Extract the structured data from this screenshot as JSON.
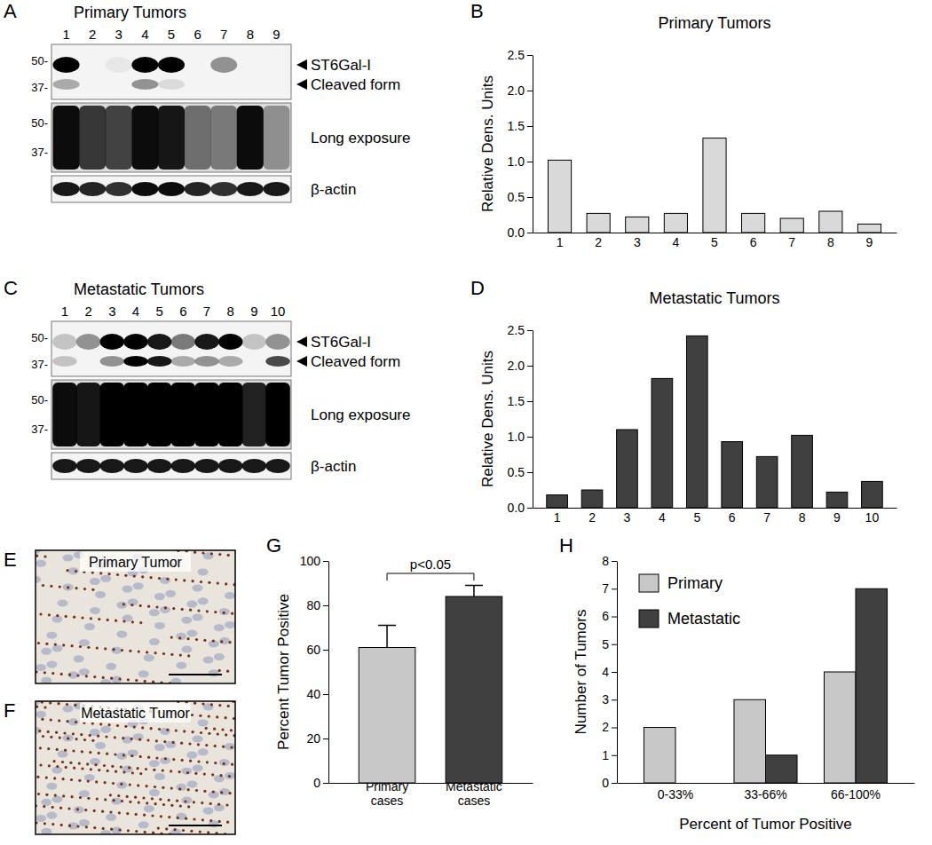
{
  "chart_data": [
    {
      "type": "bar",
      "panel_label": "B",
      "title": "Primary Tumors",
      "y_label": "Relative Dens. Units",
      "categories": [
        "1",
        "2",
        "3",
        "4",
        "5",
        "6",
        "7",
        "8",
        "9"
      ],
      "values": [
        1.02,
        0.27,
        0.22,
        0.27,
        1.33,
        0.27,
        0.2,
        0.3,
        0.12
      ],
      "color": "#d9d9d9",
      "ylim": [
        0,
        2.5
      ],
      "yticks": [
        {
          "value": 0,
          "label": "0.0"
        },
        0.5,
        {
          "value": 1,
          "label": "1.0"
        },
        1.5,
        {
          "value": 2,
          "label": "2.0"
        },
        2.5
      ]
    },
    {
      "type": "bar",
      "panel_label": "D",
      "title": "Metastatic Tumors",
      "y_label": "Relative Dens. Units",
      "categories": [
        "1",
        "2",
        "3",
        "4",
        "5",
        "6",
        "7",
        "8",
        "9",
        "10"
      ],
      "values": [
        0.18,
        0.25,
        1.1,
        1.82,
        2.42,
        0.93,
        0.72,
        1.02,
        0.22,
        0.37
      ],
      "color": "#404040",
      "ylim": [
        0,
        2.5
      ],
      "yticks": [
        {
          "value": 0,
          "label": "0.0"
        },
        0.5,
        {
          "value": 1,
          "label": "1.0"
        },
        1.5,
        {
          "value": 2,
          "label": "2.0"
        },
        2.5
      ]
    },
    {
      "type": "bar",
      "panel_label": "G",
      "y_label": "Percent Tumor Positive",
      "categories": [
        "Primary cases",
        "Metastatic cases"
      ],
      "values": [
        61,
        84
      ],
      "errors": [
        10,
        5
      ],
      "colors": [
        "#c8c8c8",
        "#404040"
      ],
      "annotation": "p<0.05",
      "ylim": [
        0,
        100
      ],
      "yticks": [
        0,
        20,
        40,
        60,
        80,
        100
      ]
    },
    {
      "type": "bar",
      "panel_label": "H",
      "y_label": "Number of Tumors",
      "x_label": "Percent of Tumor Positive",
      "categories": [
        "0-33%",
        "33-66%",
        "66-100%"
      ],
      "series": [
        {
          "name": "Primary",
          "color": "#c8c8c8",
          "values": [
            2,
            3,
            4
          ]
        },
        {
          "name": "Metastatic",
          "color": "#404040",
          "values": [
            0,
            1,
            7
          ]
        }
      ],
      "legend": "top-left",
      "ylim": [
        0,
        8
      ],
      "yticks": [
        0,
        1,
        2,
        3,
        4,
        5,
        6,
        7,
        8
      ]
    }
  ],
  "blots": [
    {
      "panel_label": "A",
      "title": "Primary Tumors",
      "lanes": [
        "1",
        "2",
        "3",
        "4",
        "5",
        "6",
        "7",
        "8",
        "9"
      ],
      "markers": [
        {
          "value": 50,
          "label": "50-"
        },
        {
          "value": 37,
          "label": "37-"
        }
      ],
      "rows": [
        {
          "label": "ST6Gal-I",
          "intensity": [
            1,
            0,
            0.05,
            1,
            1,
            0,
            0.4,
            0,
            0
          ]
        },
        {
          "label": "Cleaved form",
          "intensity": [
            0.3,
            0,
            0,
            0.4,
            0.1,
            0,
            0,
            0,
            0
          ]
        }
      ],
      "long_exposure": {
        "label": "Long exposure",
        "intensity": [
          0.95,
          0.75,
          0.7,
          0.95,
          0.9,
          0.5,
          0.45,
          0.95,
          0.35
        ]
      },
      "loading": {
        "label": "β-actin",
        "intensity": [
          0.9,
          0.85,
          0.8,
          0.95,
          0.95,
          0.85,
          0.8,
          0.9,
          0.9
        ]
      }
    },
    {
      "panel_label": "C",
      "title": "Metastatic Tumors",
      "lanes": [
        "1",
        "2",
        "3",
        "4",
        "5",
        "6",
        "7",
        "8",
        "9",
        "10"
      ],
      "markers": [
        {
          "value": 50,
          "label": "50-"
        },
        {
          "value": 37,
          "label": "37-"
        }
      ],
      "rows": [
        {
          "label": "ST6Gal-I",
          "intensity": [
            0.2,
            0.4,
            1,
            1,
            0.9,
            0.5,
            0.9,
            1,
            0.2,
            0.4
          ]
        },
        {
          "label": "Cleaved form",
          "intensity": [
            0.2,
            0,
            0.4,
            1,
            0.9,
            0.3,
            0.4,
            0.3,
            0,
            0.7
          ]
        }
      ],
      "long_exposure": {
        "label": "Long exposure",
        "intensity": [
          0.95,
          0.9,
          1,
          1,
          1,
          1,
          1,
          1,
          0.85,
          1
        ]
      },
      "loading": {
        "label": "β-actin",
        "intensity": [
          0.9,
          0.9,
          0.9,
          0.9,
          0.9,
          0.9,
          0.9,
          0.9,
          0.9,
          0.9
        ]
      }
    }
  ],
  "micrographs": [
    {
      "panel_label": "E",
      "title": "Primary Tumor"
    },
    {
      "panel_label": "F",
      "title": "Metastatic Tumor"
    }
  ]
}
